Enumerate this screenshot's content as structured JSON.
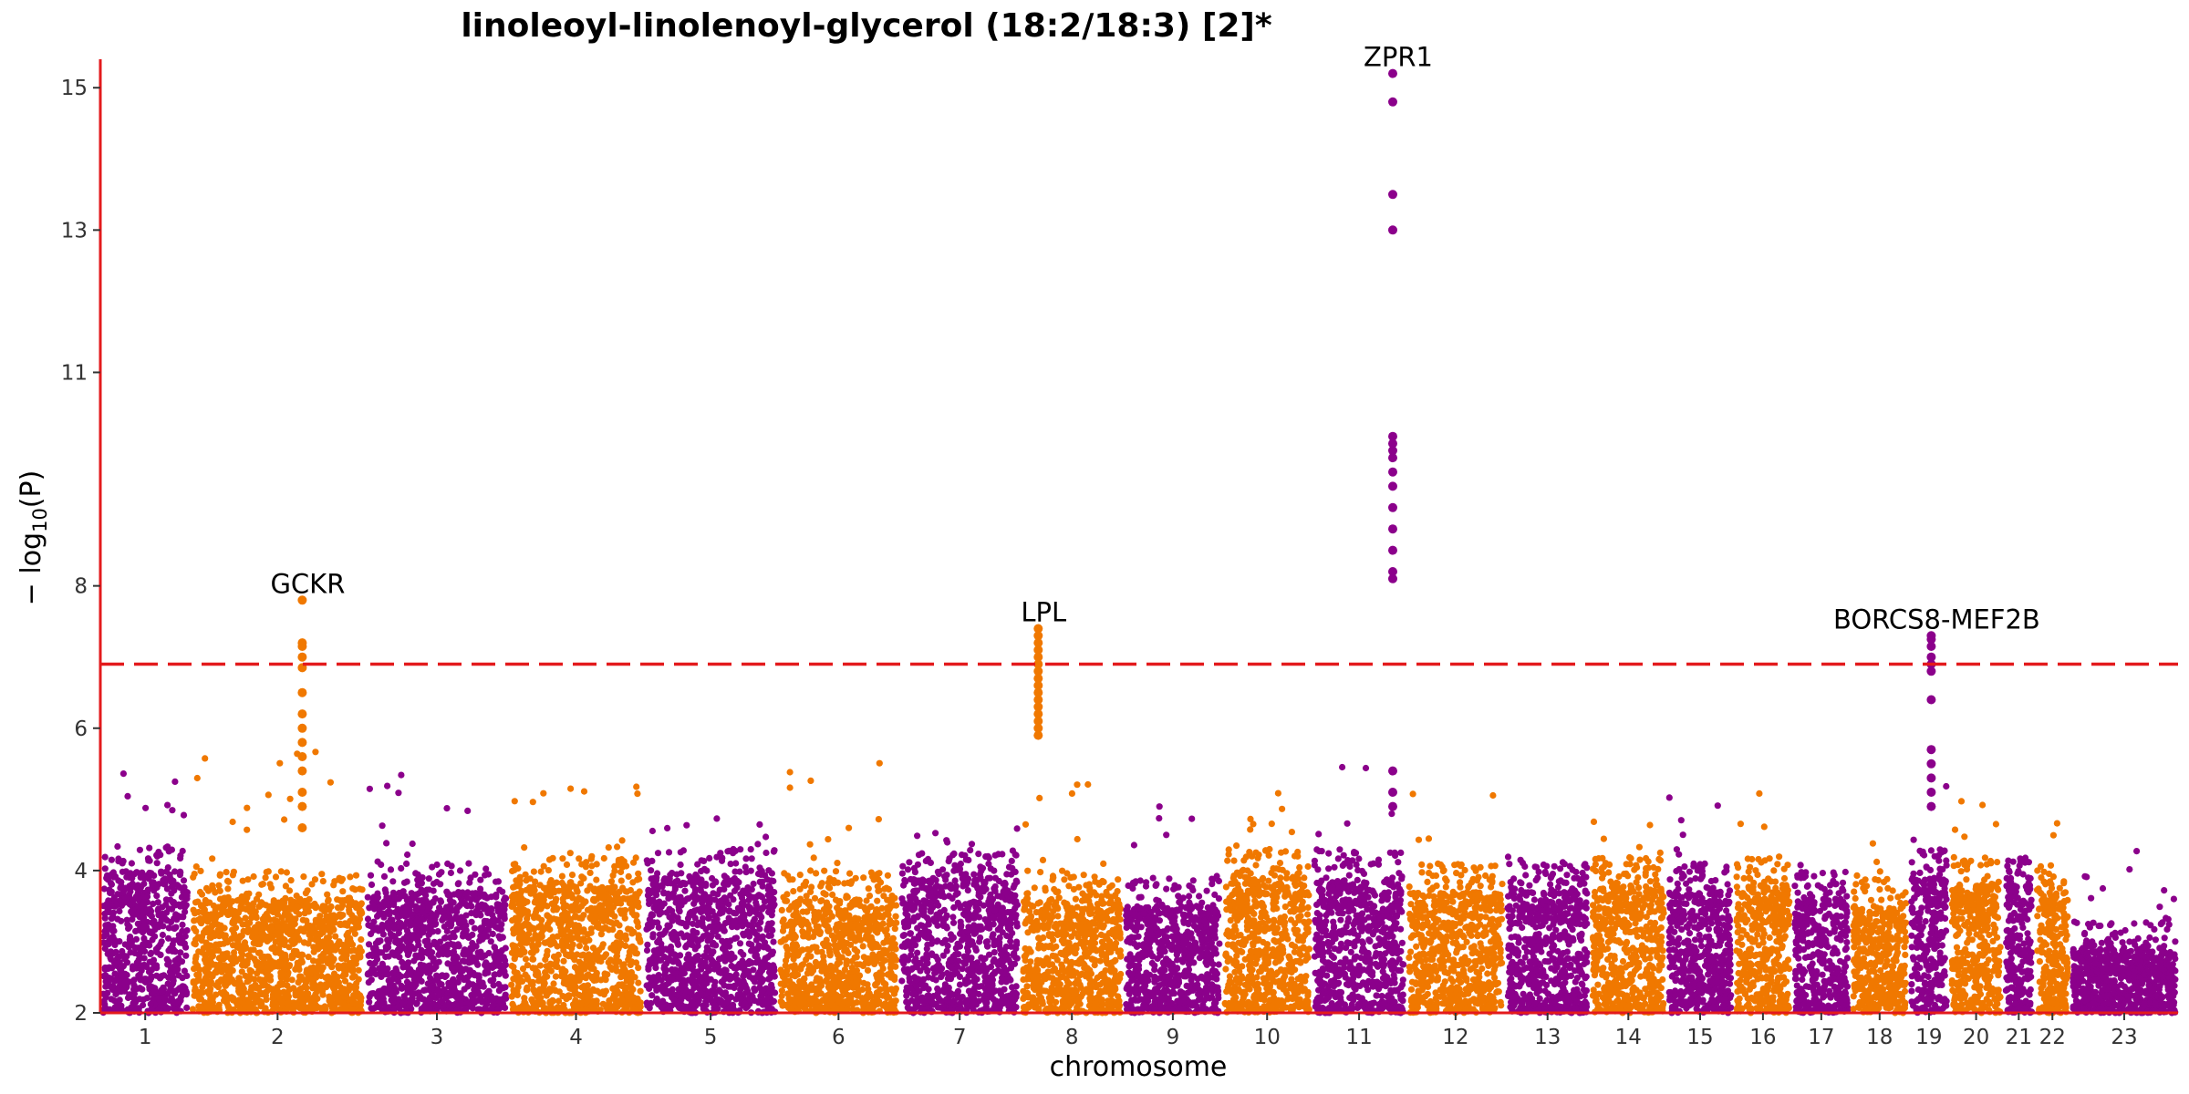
{
  "chart_data": {
    "type": "scatter",
    "subtype": "manhattan",
    "title": "linoleoyl-linolenoyl-glycerol (18:2/18:3) [2]*",
    "xlabel": "chromosome",
    "ylabel": "− log10(P)",
    "ylabel_base": "− log",
    "ylabel_sub": "10",
    "ylabel_arg": "(P)",
    "ylim": [
      2,
      15.4
    ],
    "yticks": [
      2,
      4,
      6,
      8,
      11,
      13,
      15
    ],
    "significance_threshold": 6.9,
    "colors": {
      "odd_chromosome": "#8B008B",
      "even_chromosome": "#F07800",
      "axis": "#E31A1C",
      "threshold": "#E31A1C"
    },
    "chromosomes": [
      {
        "label": "1",
        "start": 0.0,
        "end": 1.0,
        "color": "purple",
        "baseline": 4.0,
        "max_bg": 5.6
      },
      {
        "label": "2",
        "start": 1.0,
        "end": 2.95,
        "color": "orange",
        "baseline": 3.6,
        "max_bg": 5.8
      },
      {
        "label": "3",
        "start": 2.95,
        "end": 4.55,
        "color": "purple",
        "baseline": 3.7,
        "max_bg": 5.4
      },
      {
        "label": "4",
        "start": 4.55,
        "end": 6.05,
        "color": "orange",
        "baseline": 3.8,
        "max_bg": 5.2
      },
      {
        "label": "5",
        "start": 6.05,
        "end": 7.55,
        "color": "purple",
        "baseline": 3.9,
        "max_bg": 5.0
      },
      {
        "label": "6",
        "start": 7.55,
        "end": 8.9,
        "color": "orange",
        "baseline": 3.6,
        "max_bg": 5.8
      },
      {
        "label": "7",
        "start": 8.9,
        "end": 10.25,
        "color": "purple",
        "baseline": 3.9,
        "max_bg": 4.6
      },
      {
        "label": "8",
        "start": 10.25,
        "end": 11.4,
        "color": "orange",
        "baseline": 3.6,
        "max_bg": 5.3
      },
      {
        "label": "9",
        "start": 11.4,
        "end": 12.5,
        "color": "purple",
        "baseline": 3.5,
        "max_bg": 5.1
      },
      {
        "label": "10",
        "start": 12.5,
        "end": 13.5,
        "color": "orange",
        "baseline": 3.9,
        "max_bg": 5.1
      },
      {
        "label": "11",
        "start": 13.5,
        "end": 14.55,
        "color": "purple",
        "baseline": 3.9,
        "max_bg": 5.5
      },
      {
        "label": "12",
        "start": 14.55,
        "end": 15.65,
        "color": "orange",
        "baseline": 3.7,
        "max_bg": 5.2
      },
      {
        "label": "13",
        "start": 15.65,
        "end": 16.6,
        "color": "purple",
        "baseline": 3.7,
        "max_bg": 4.3
      },
      {
        "label": "14",
        "start": 16.6,
        "end": 17.45,
        "color": "orange",
        "baseline": 3.8,
        "max_bg": 4.8
      },
      {
        "label": "15",
        "start": 17.45,
        "end": 18.2,
        "color": "purple",
        "baseline": 3.7,
        "max_bg": 5.1
      },
      {
        "label": "16",
        "start": 18.2,
        "end": 18.85,
        "color": "orange",
        "baseline": 3.8,
        "max_bg": 5.3
      },
      {
        "label": "17",
        "start": 18.85,
        "end": 19.5,
        "color": "purple",
        "baseline": 3.6,
        "max_bg": 4.2
      },
      {
        "label": "18",
        "start": 19.5,
        "end": 20.15,
        "color": "orange",
        "baseline": 3.5,
        "max_bg": 4.4
      },
      {
        "label": "19",
        "start": 20.15,
        "end": 20.6,
        "color": "purple",
        "baseline": 3.9,
        "max_bg": 5.6
      },
      {
        "label": "20",
        "start": 20.6,
        "end": 21.2,
        "color": "orange",
        "baseline": 3.8,
        "max_bg": 5.1
      },
      {
        "label": "21",
        "start": 21.2,
        "end": 21.55,
        "color": "purple",
        "baseline": 3.8,
        "max_bg": 4.2
      },
      {
        "label": "22",
        "start": 21.55,
        "end": 21.95,
        "color": "orange",
        "baseline": 3.7,
        "max_bg": 4.7
      },
      {
        "label": "23",
        "start": 21.95,
        "end": 23.15,
        "color": "purple",
        "baseline": 2.9,
        "max_bg": 4.3
      }
    ],
    "peaks": [
      {
        "gene": "GCKR",
        "chromosome": "2",
        "x": 2.25,
        "top": 7.8,
        "color": "orange",
        "points": [
          7.8,
          7.2,
          7.15,
          7.0,
          6.85,
          6.5,
          6.2,
          6.0,
          5.8,
          5.6,
          5.4,
          5.1,
          4.9,
          4.6
        ]
      },
      {
        "gene": "LPL",
        "chromosome": "8",
        "x": 10.45,
        "top": 7.4,
        "color": "orange",
        "points": [
          7.4,
          7.3,
          7.2,
          7.1,
          7.0,
          6.9,
          6.8,
          6.7,
          6.6,
          6.5,
          6.4,
          6.3,
          6.2,
          6.1,
          6.0,
          5.9
        ]
      },
      {
        "gene": "ZPR1",
        "chromosome": "11",
        "x": 14.4,
        "top": 15.2,
        "color": "purple",
        "points": [
          15.2,
          14.8,
          13.5,
          13.0,
          10.1,
          10.0,
          9.9,
          9.8,
          9.6,
          9.4,
          9.1,
          8.8,
          8.5,
          8.2,
          8.1,
          5.4,
          5.1,
          4.9
        ]
      },
      {
        "gene": "BORCS8-MEF2B",
        "chromosome": "19",
        "x": 20.4,
        "top": 7.3,
        "color": "purple",
        "points": [
          7.3,
          7.25,
          7.15,
          7.0,
          6.9,
          6.8,
          6.4,
          5.7,
          5.5,
          5.3,
          5.1,
          4.9
        ]
      }
    ]
  }
}
